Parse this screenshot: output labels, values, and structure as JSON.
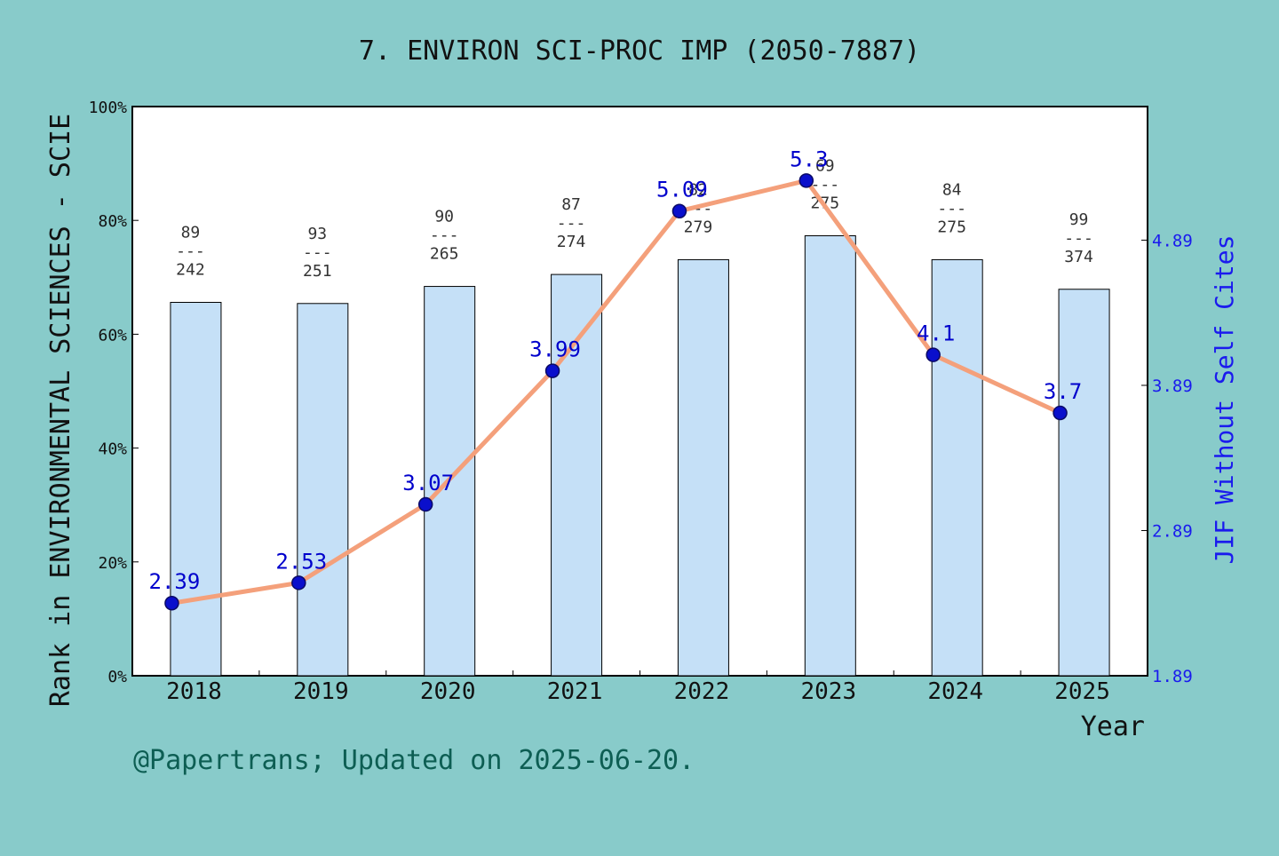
{
  "chart_data": {
    "type": "bar",
    "title": "7. ENVIRON SCI-PROC IMP (2050-7887)",
    "xlabel": "Year",
    "ylabel_left": "Rank in ENVIRONMENTAL SCIENCES - SCIE",
    "ylabel_right": "JIF Without Self Cites",
    "categories": [
      "2018",
      "2019",
      "2020",
      "2021",
      "2022",
      "2023",
      "2024",
      "2025"
    ],
    "bar_values_percent": [
      65.6,
      65.4,
      68.4,
      70.5,
      73.1,
      77.3,
      73.1,
      67.9
    ],
    "rank": [
      89,
      93,
      90,
      87,
      82,
      69,
      84,
      99
    ],
    "total": [
      242,
      251,
      265,
      274,
      279,
      275,
      275,
      374
    ],
    "rank_separator": "---",
    "jif": [
      2.39,
      2.53,
      3.07,
      3.99,
      5.09,
      5.3,
      4.1,
      3.7
    ],
    "jif_labels": [
      "2.39",
      "2.53",
      "3.07",
      "3.99",
      "5.09",
      "5.3",
      "4.1",
      "3.7"
    ],
    "ylim_left": [
      0,
      100
    ],
    "left_ticks": [
      "0%",
      "20%",
      "40%",
      "60%",
      "80%",
      "100%"
    ],
    "ylim_right": [
      1.89,
      5.81
    ],
    "right_ticks": [
      "1.89",
      "2.89",
      "3.89",
      "4.89"
    ],
    "right_tick_values": [
      1.89,
      2.89,
      3.89,
      4.89
    ],
    "grid": false,
    "colors": {
      "background": "#88cbca",
      "plot_bg": "#ffffff",
      "bar_fill": "#c5e0f7",
      "line": "#f4a07b",
      "marker": "#0a0fcc",
      "jif_text": "#0000cc",
      "right_axis": "#1a1aee",
      "footer": "#0d5e53"
    }
  },
  "footer": "@Papertrans; Updated on 2025-06-20."
}
